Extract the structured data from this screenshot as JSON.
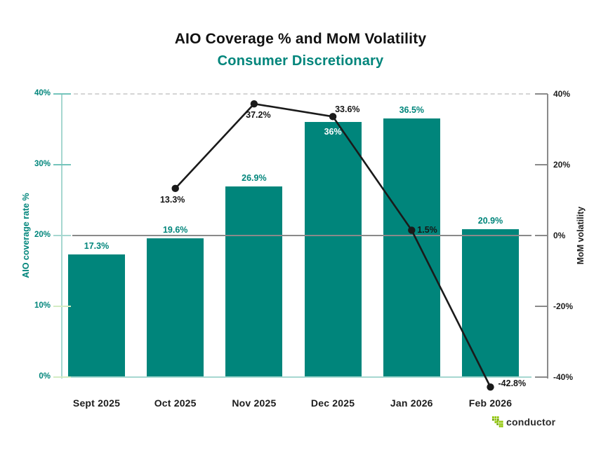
{
  "header": {
    "title": "AIO Coverage % and MoM Volatility",
    "subtitle": "Consumer Discretionary"
  },
  "chart_data": {
    "type": "bar",
    "subtype": "bar+line combo, dual y-axes",
    "categories": [
      "Sept 2025",
      "Oct 2025",
      "Nov 2025",
      "Dec 2025",
      "Jan 2026",
      "Feb 2026"
    ],
    "series": [
      {
        "name": "AIO coverage rate %",
        "type": "bar",
        "axis": "left",
        "values": [
          17.3,
          19.6,
          26.9,
          36,
          36.5,
          20.9
        ],
        "labels": [
          "17.3%",
          "19.6%",
          "26.9%",
          "36%",
          "36.5%",
          "20.9%"
        ],
        "label_placement": [
          "above",
          "above",
          "above",
          "inside",
          "above",
          "above"
        ]
      },
      {
        "name": "MoM volatility",
        "type": "line",
        "axis": "right",
        "x_indices": [
          1,
          2,
          3,
          4,
          5
        ],
        "values": [
          13.3,
          37.2,
          33.6,
          1.5,
          -42.8
        ],
        "labels": [
          "13.3%",
          "37.2%",
          "33.6%",
          "1.5%",
          "-42.8%"
        ],
        "label_placement": [
          "below",
          "below-right",
          "above-right",
          "right",
          "right-above"
        ]
      }
    ],
    "left_axis": {
      "title": "AIO coverage rate %",
      "range": [
        0,
        40
      ],
      "tick_values": [
        0,
        10,
        20,
        30,
        40
      ],
      "tick_labels": [
        "0%",
        "10%",
        "20%",
        "30%",
        "40%"
      ]
    },
    "right_axis": {
      "title": "MoM volatility",
      "range": [
        -40,
        40
      ],
      "tick_values": [
        -40,
        -20,
        0,
        20,
        40
      ],
      "tick_labels": [
        "-40%",
        "-20%",
        "0%",
        "20%",
        "40%"
      ]
    },
    "layout_hints": {
      "grid": "dashed gridline at top (left 40% / right 40%), solid gray zero line at right-axis 0%",
      "legend": "none",
      "zero_line_crosses_over_bars": true
    }
  },
  "footer": {
    "brand": "conductor"
  },
  "colors": {
    "bar_teal": "#00857B",
    "title_black": "#111111",
    "subtitle_teal": "#00857B",
    "line_black": "#1a1a1a",
    "axis_light_teal": "#a6d7d0",
    "tick_teal": "#74c4bb",
    "tick_light_green": "#d4ecc3",
    "zero_line_gray": "#8a8a8a",
    "dashed_gridline_gray": "#d5d5d5",
    "brand_green": "#8dc400"
  }
}
